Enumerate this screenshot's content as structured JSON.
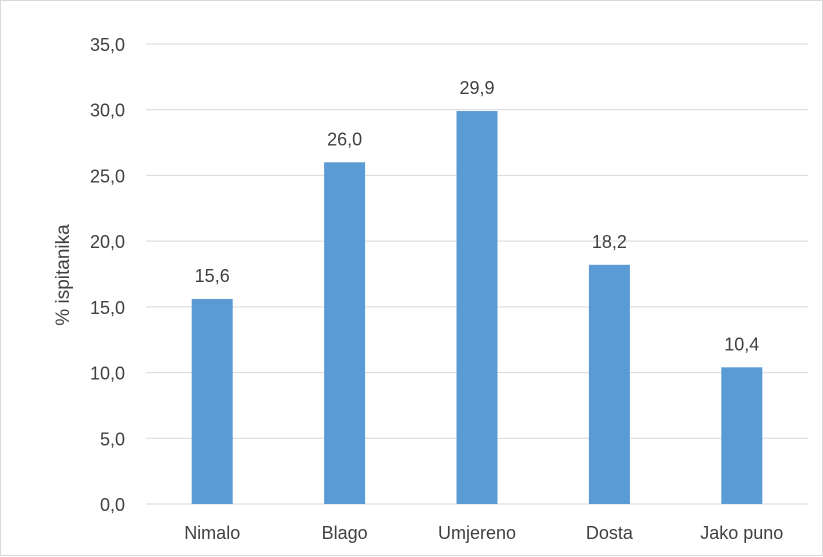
{
  "chart_data": {
    "type": "bar",
    "categories": [
      "Nimalo",
      "Blago",
      "Umjereno",
      "Dosta",
      "Jako puno"
    ],
    "values": [
      15.6,
      26.0,
      29.9,
      18.2,
      10.4
    ],
    "value_labels": [
      "15,6",
      "26,0",
      "29,9",
      "18,2",
      "10,4"
    ],
    "title": "",
    "xlabel": "",
    "ylabel": "% ispitanika",
    "ylim": [
      0,
      35
    ],
    "yticks": [
      0,
      5,
      10,
      15,
      20,
      25,
      30,
      35
    ],
    "ytick_labels": [
      "0,0",
      "5,0",
      "10,0",
      "15,0",
      "20,0",
      "25,0",
      "30,0",
      "35,0"
    ],
    "grid": true,
    "legend": "none",
    "bar_color": "#5b9bd5",
    "grid_color": "#d9d9d9"
  }
}
